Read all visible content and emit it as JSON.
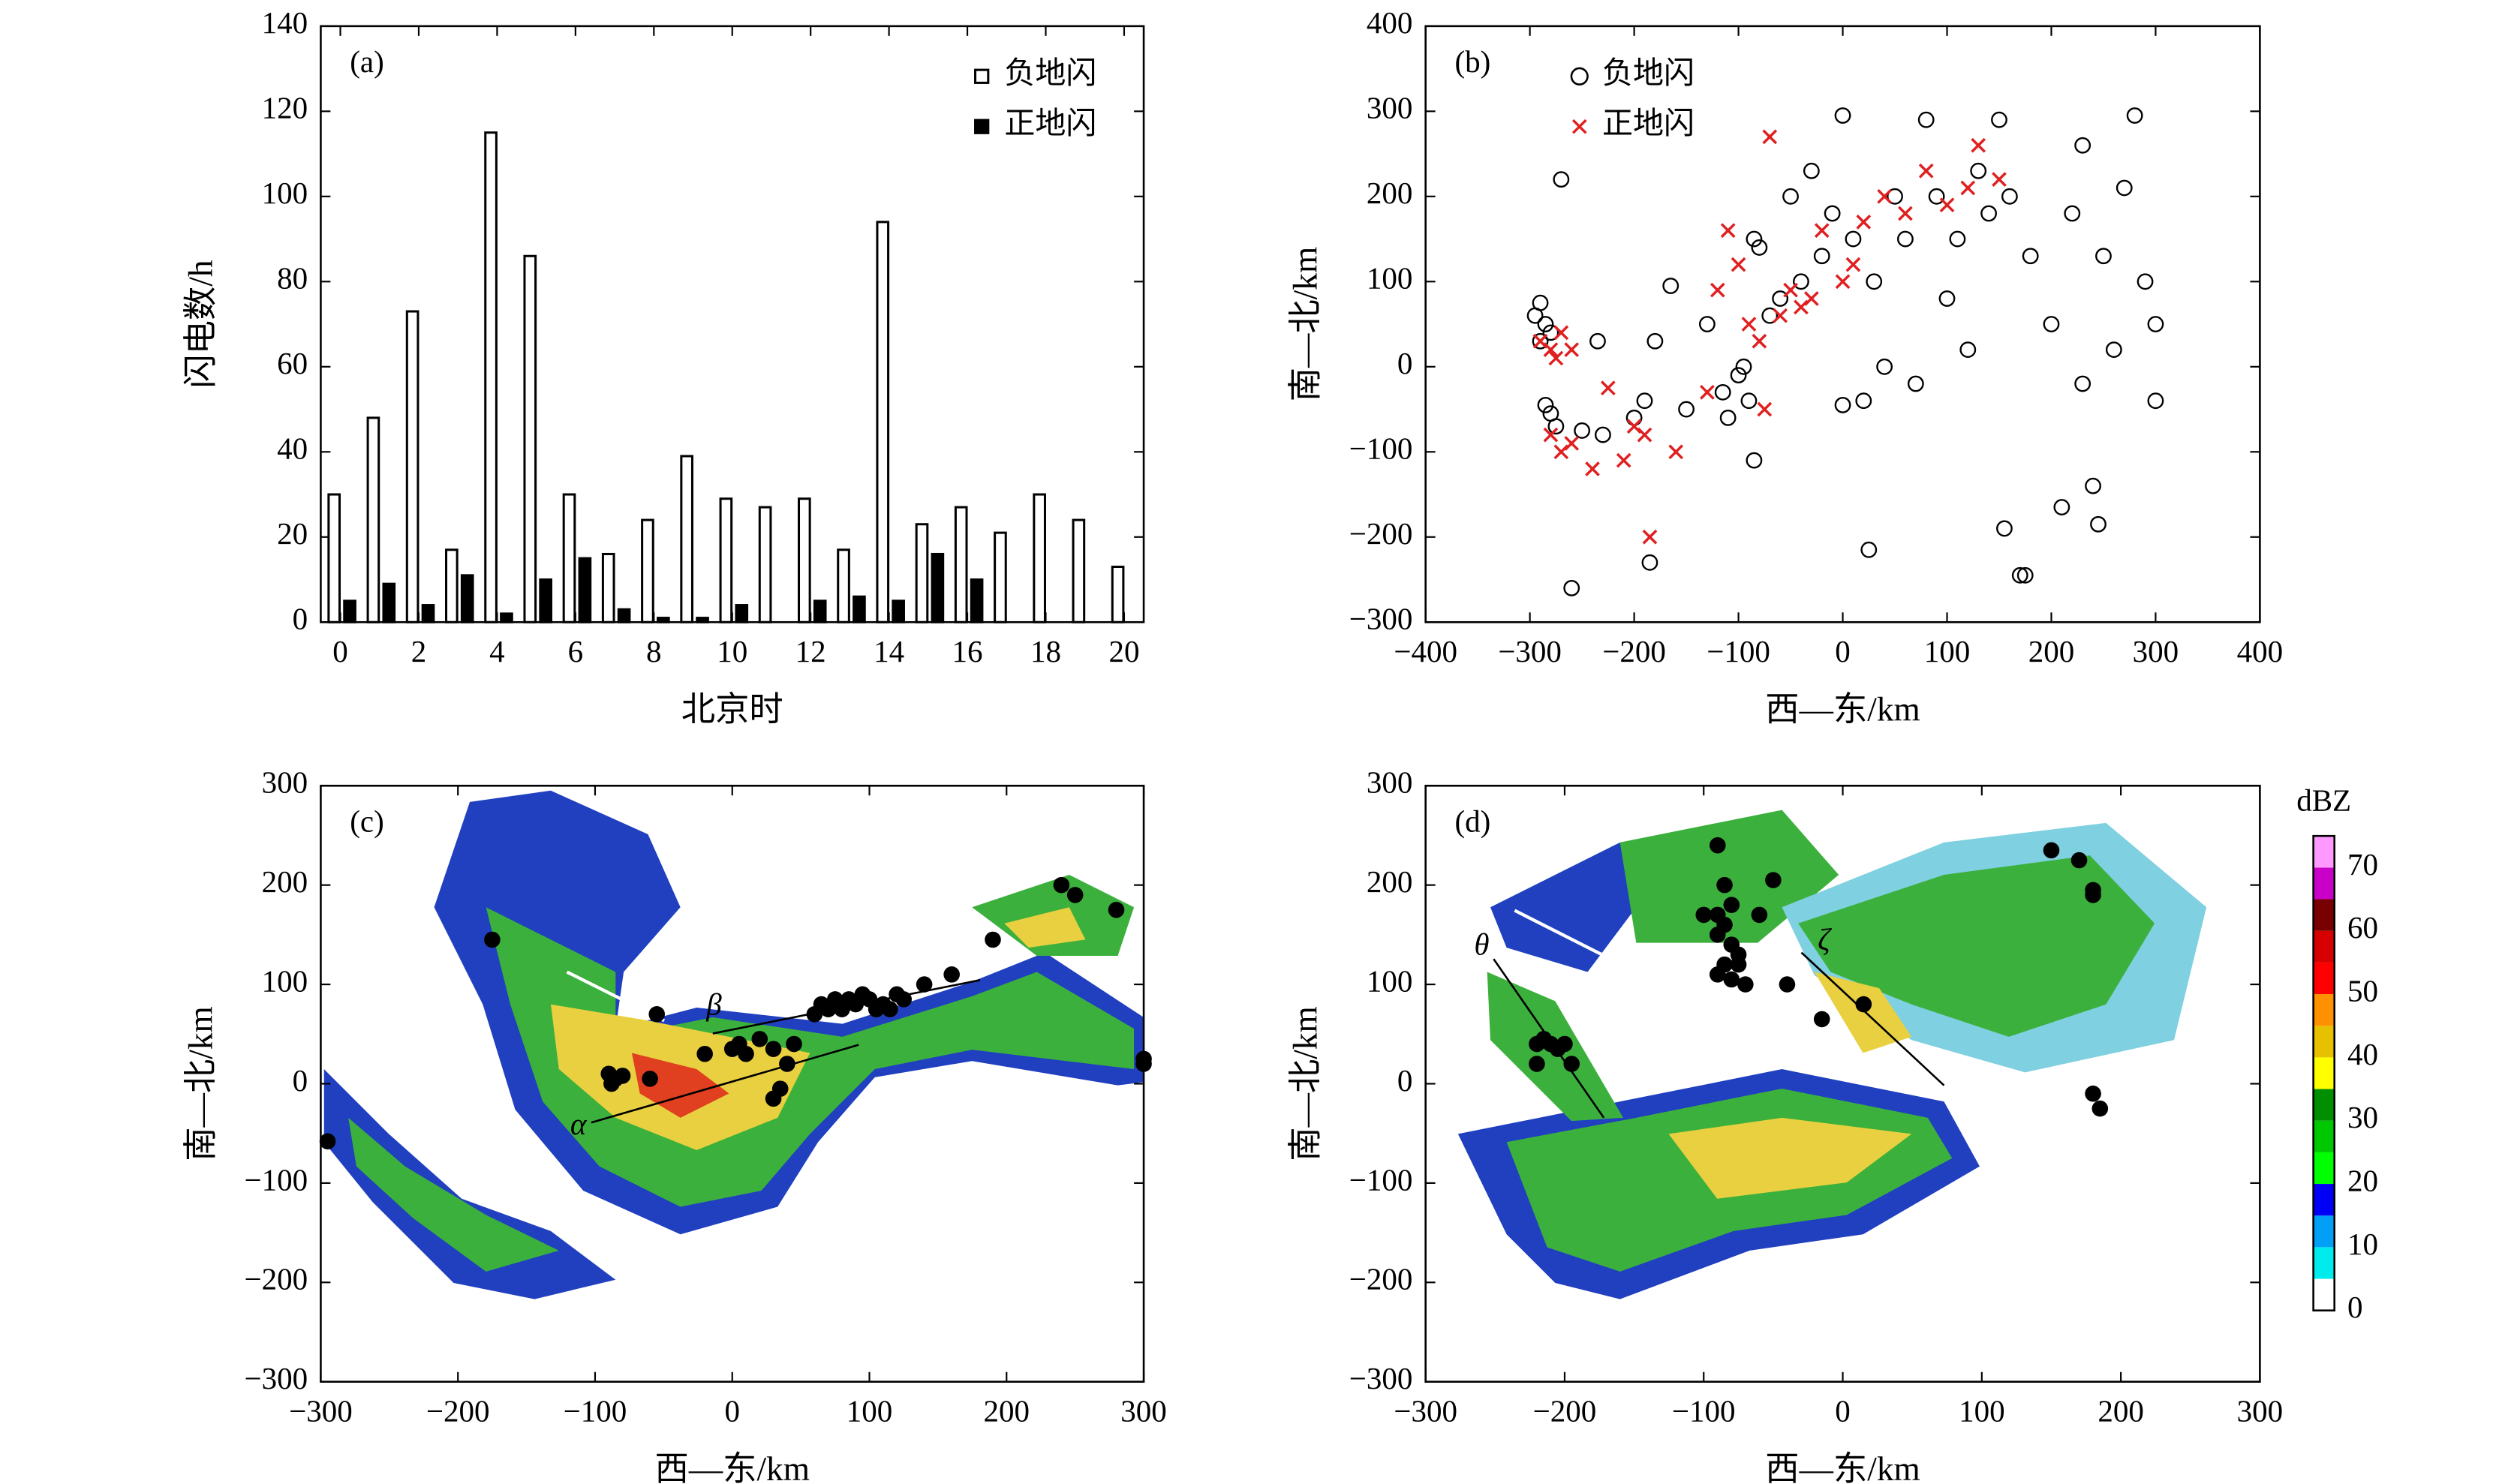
{
  "chart_data": [
    {
      "type": "bar",
      "label": "(a)",
      "xlabel": "北京时",
      "ylabel": "闪电数/h",
      "x": [
        0,
        1,
        2,
        3,
        4,
        5,
        6,
        7,
        8,
        9,
        10,
        11,
        12,
        13,
        14,
        15,
        16,
        17,
        18,
        19,
        20
      ],
      "xlim": [
        -0.5,
        20.5
      ],
      "xticks": [
        0,
        2,
        4,
        6,
        8,
        10,
        12,
        14,
        16,
        18,
        20
      ],
      "ylim": [
        0,
        140
      ],
      "yticks": [
        0,
        20,
        40,
        60,
        80,
        100,
        120,
        140
      ],
      "legend": "upper right",
      "series": [
        {
          "name": "负地闪",
          "color": "#ffffff",
          "values": [
            30,
            48,
            73,
            17,
            115,
            86,
            30,
            16,
            24,
            39,
            29,
            27,
            29,
            17,
            94,
            23,
            27,
            21,
            30,
            24,
            13
          ]
        },
        {
          "name": "正地闪",
          "color": "#000000",
          "values": [
            5,
            9,
            4,
            11,
            2,
            10,
            15,
            3,
            1,
            1,
            4,
            0,
            5,
            6,
            5,
            16,
            10,
            0,
            0,
            0,
            0
          ]
        }
      ]
    },
    {
      "type": "scatter",
      "label": "(b)",
      "xlabel": "西—东/km",
      "ylabel": "南—北/km",
      "xlim": [
        -400,
        400
      ],
      "xticks": [
        {
          "value": -400,
          "label": "−400"
        },
        {
          "value": -300,
          "label": "−300"
        },
        {
          "value": -200,
          "label": "−200"
        },
        {
          "value": -100,
          "label": "−100"
        },
        0,
        100,
        200,
        300,
        400
      ],
      "ylim": [
        -300,
        400
      ],
      "yticks": [
        {
          "value": -300,
          "label": "−300"
        },
        {
          "value": -200,
          "label": "−200"
        },
        {
          "value": -100,
          "label": "−100"
        },
        0,
        100,
        200,
        300,
        400
      ],
      "legend": "upper left",
      "series": [
        {
          "name": "负地闪",
          "color": "#000000",
          "marker": "o",
          "x": [
            -290,
            -295,
            -285,
            -280,
            -290,
            -285,
            -280,
            -275,
            -270,
            -260,
            -250,
            -235,
            -230,
            -200,
            -190,
            -185,
            -180,
            -165,
            -150,
            -130,
            -115,
            -110,
            -100,
            -95,
            -90,
            -85,
            -85,
            -80,
            -70,
            -60,
            -50,
            -40,
            -30,
            -20,
            -10,
            0,
            0,
            10,
            20,
            25,
            30,
            40,
            50,
            60,
            70,
            80,
            90,
            100,
            110,
            120,
            130,
            140,
            150,
            155,
            160,
            170,
            180,
            200,
            210,
            220,
            230,
            240,
            245,
            250,
            260,
            270,
            280,
            290,
            300,
            300,
            230,
            175
          ],
          "y": [
            75,
            60,
            50,
            40,
            30,
            -45,
            -55,
            -70,
            220,
            -260,
            -75,
            30,
            -80,
            -60,
            -40,
            -230,
            30,
            95,
            -50,
            50,
            -30,
            -60,
            -10,
            0,
            -40,
            -110,
            150,
            140,
            60,
            80,
            200,
            100,
            230,
            130,
            180,
            295,
            -45,
            150,
            -40,
            -215,
            100,
            0,
            200,
            150,
            -20,
            290,
            200,
            80,
            150,
            20,
            230,
            180,
            290,
            -190,
            200,
            -245,
            130,
            50,
            -165,
            180,
            -20,
            -140,
            -185,
            130,
            20,
            210,
            295,
            100,
            50,
            -40,
            260,
            -245
          ]
        },
        {
          "name": "正地闪",
          "color": "#e02020",
          "marker": "x",
          "x": [
            -290,
            -280,
            -275,
            -270,
            -260,
            -280,
            -270,
            -260,
            -240,
            -225,
            -210,
            -200,
            -190,
            -185,
            -160,
            -130,
            -120,
            -110,
            -100,
            -90,
            -80,
            -75,
            -70,
            -60,
            -50,
            -40,
            -30,
            -20,
            0,
            10,
            20,
            40,
            60,
            80,
            100,
            120,
            130,
            150
          ],
          "y": [
            30,
            20,
            10,
            40,
            20,
            -80,
            -100,
            -90,
            -120,
            -25,
            -110,
            -70,
            -80,
            -200,
            -100,
            -30,
            90,
            160,
            120,
            50,
            30,
            -50,
            270,
            60,
            90,
            70,
            80,
            160,
            100,
            120,
            170,
            200,
            180,
            230,
            190,
            210,
            260,
            220
          ]
        }
      ]
    },
    {
      "type": "scatter",
      "label": "(c)",
      "xlabel": "西—东/km",
      "ylabel": "南—北/km",
      "xlim": [
        -300,
        300
      ],
      "xticks": [
        {
          "value": -300,
          "label": "−300"
        },
        {
          "value": -200,
          "label": "−200"
        },
        {
          "value": -100,
          "label": "−100"
        },
        0,
        100,
        200,
        300
      ],
      "ylim": [
        -300,
        300
      ],
      "yticks": [
        {
          "value": -300,
          "label": "−300"
        },
        {
          "value": -200,
          "label": "−200"
        },
        {
          "value": -100,
          "label": "−100"
        },
        0,
        100,
        200,
        300
      ],
      "annotations": [
        "α",
        "β"
      ],
      "series": [
        {
          "color": "#000000",
          "marker": "dot",
          "x": [
            -175,
            -55,
            -90,
            -85,
            -80,
            -88,
            -295,
            0,
            5,
            10,
            20,
            30,
            40,
            45,
            35,
            30,
            60,
            65,
            70,
            75,
            80,
            85,
            90,
            95,
            100,
            105,
            110,
            115,
            120,
            125,
            140,
            160,
            190,
            240,
            250,
            280,
            300,
            300,
            -60,
            -20
          ],
          "y": [
            145,
            70,
            10,
            5,
            8,
            0,
            -58,
            35,
            40,
            30,
            45,
            35,
            20,
            40,
            -5,
            -15,
            70,
            80,
            75,
            85,
            75,
            85,
            80,
            90,
            85,
            75,
            80,
            75,
            90,
            85,
            100,
            110,
            145,
            200,
            190,
            175,
            25,
            20,
            5,
            30
          ]
        }
      ]
    },
    {
      "type": "scatter",
      "label": "(d)",
      "xlabel": "西—东/km",
      "ylabel": "南—北/km",
      "xlim": [
        -300,
        300
      ],
      "xticks": [
        {
          "value": -300,
          "label": "−300"
        },
        {
          "value": -200,
          "label": "−200"
        },
        {
          "value": -100,
          "label": "−100"
        },
        0,
        100,
        200,
        300
      ],
      "ylim": [
        -300,
        300
      ],
      "yticks": [
        {
          "value": -300,
          "label": "−300"
        },
        {
          "value": -200,
          "label": "−200"
        },
        {
          "value": -100,
          "label": "−100"
        },
        0,
        100,
        200,
        300
      ],
      "annotations": [
        "θ",
        "ζ"
      ],
      "colorbar": {
        "label": "dBZ",
        "lim": [
          0,
          75
        ],
        "ticks": [
          0,
          10,
          20,
          30,
          40,
          50,
          60,
          70
        ],
        "colors": [
          "#ffffff",
          "#00ecec",
          "#01a0f6",
          "#0000f6",
          "#00ff00",
          "#00c800",
          "#008f00",
          "#ffff00",
          "#e7c000",
          "#ff9000",
          "#ff0000",
          "#d60000",
          "#780000",
          "#c800c8",
          "#ff99ff"
        ]
      },
      "series": [
        {
          "color": "#000000",
          "marker": "dot",
          "x": [
            -215,
            -220,
            -210,
            -205,
            -200,
            -220,
            -195,
            -90,
            -85,
            -80,
            -90,
            -85,
            -90,
            -80,
            -75,
            -85,
            -90,
            -80,
            -70,
            -75,
            -60,
            -50,
            -40,
            -15,
            15,
            150,
            170,
            180,
            180,
            180,
            185,
            -100
          ],
          "y": [
            45,
            40,
            40,
            35,
            40,
            20,
            20,
            240,
            200,
            180,
            170,
            160,
            150,
            140,
            130,
            120,
            110,
            105,
            100,
            120,
            170,
            205,
            100,
            65,
            80,
            235,
            225,
            195,
            190,
            -10,
            -25,
            170
          ]
        }
      ]
    }
  ]
}
